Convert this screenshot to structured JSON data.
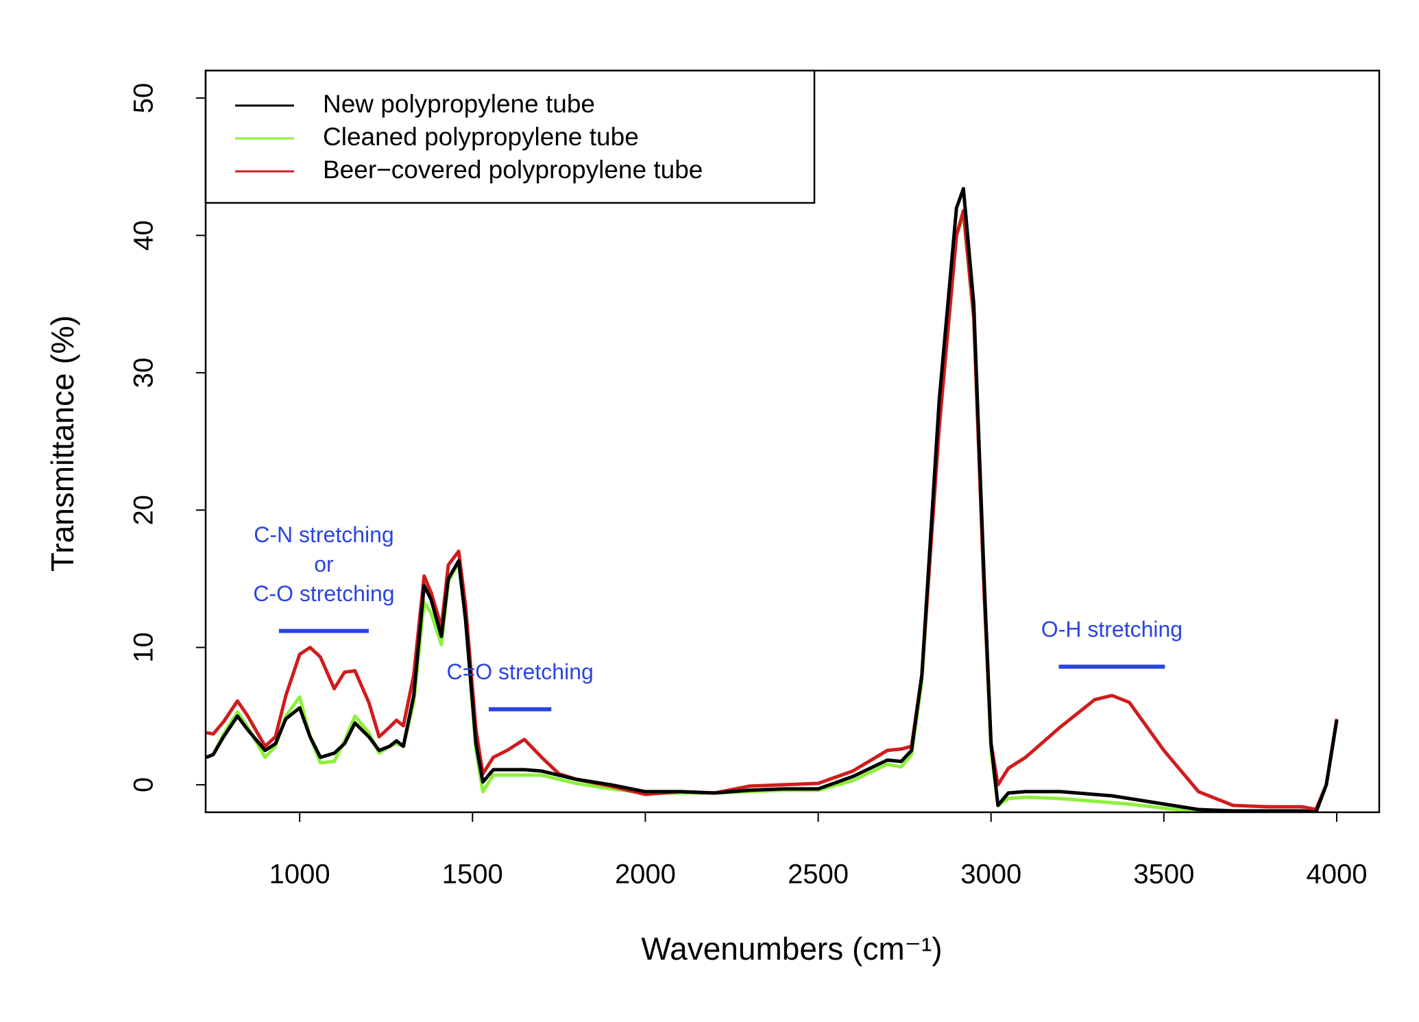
{
  "chart_data": {
    "type": "line",
    "xlabel": "Wavenumbers (cm⁻¹)",
    "ylabel": "Transmittance (%)",
    "x": [
      730,
      750,
      780,
      820,
      850,
      900,
      930,
      960,
      1000,
      1030,
      1060,
      1100,
      1130,
      1160,
      1200,
      1230,
      1260,
      1280,
      1300,
      1330,
      1360,
      1380,
      1410,
      1430,
      1460,
      1480,
      1510,
      1530,
      1560,
      1600,
      1650,
      1700,
      1750,
      1800,
      1900,
      2000,
      2100,
      2200,
      2300,
      2400,
      2500,
      2600,
      2700,
      2740,
      2770,
      2800,
      2850,
      2900,
      2920,
      2950,
      2980,
      3000,
      3020,
      3050,
      3100,
      3200,
      3300,
      3350,
      3400,
      3500,
      3600,
      3700,
      3800,
      3900,
      3940,
      3970,
      4000
    ],
    "series": [
      {
        "name": "New polypropylene tube",
        "color": "#000000",
        "values": [
          2.0,
          2.2,
          3.5,
          5.0,
          4.0,
          2.5,
          3.0,
          4.8,
          5.6,
          3.5,
          2.0,
          2.3,
          3.0,
          4.5,
          3.5,
          2.5,
          2.8,
          3.2,
          2.8,
          6.5,
          14.5,
          13.5,
          10.8,
          15.0,
          16.3,
          12,
          3,
          0.2,
          1.1,
          1.1,
          1.1,
          1.0,
          0.7,
          0.4,
          0,
          -0.5,
          -0.5,
          -0.6,
          -0.4,
          -0.3,
          -0.3,
          0.6,
          1.8,
          1.7,
          2.5,
          8,
          28,
          42,
          43.4,
          35,
          15,
          3,
          -1.5,
          -0.6,
          -0.5,
          -0.5,
          -0.7,
          -0.8,
          -1.0,
          -1.4,
          -1.8,
          -1.9,
          -1.9,
          -1.9,
          -2.0,
          0,
          4.7
        ]
      },
      {
        "name": "Cleaned polypropylene tube",
        "color": "#8cf03c",
        "values": [
          2.0,
          2.2,
          3.7,
          5.3,
          4.2,
          2.0,
          2.8,
          5.0,
          6.4,
          3.5,
          1.6,
          1.7,
          3.2,
          5.0,
          3.8,
          2.3,
          2.8,
          3.0,
          2.8,
          6,
          13.3,
          12.5,
          10.2,
          14.8,
          16.2,
          12,
          2.5,
          -0.5,
          0.7,
          0.7,
          0.7,
          0.7,
          0.4,
          0.1,
          -0.3,
          -0.6,
          -0.6,
          -0.6,
          -0.5,
          -0.4,
          -0.4,
          0.3,
          1.5,
          1.3,
          2.2,
          7.5,
          27,
          40,
          41.5,
          34,
          14,
          2.5,
          -1.5,
          -1.0,
          -0.9,
          -1.0,
          -1.2,
          -1.3,
          -1.4,
          -1.7,
          -2.0,
          -2.0,
          -2.0,
          -2.0,
          -2.0,
          0,
          4.7
        ]
      },
      {
        "name": "Beer−covered polypropylene tube",
        "color": "#d01c1c",
        "values": [
          3.8,
          3.7,
          4.6,
          6.1,
          5.0,
          2.8,
          3.5,
          6.5,
          9.5,
          10.0,
          9.3,
          7.0,
          8.2,
          8.3,
          6.0,
          3.5,
          4.2,
          4.7,
          4.3,
          8,
          15.2,
          14.0,
          11.5,
          16,
          17.0,
          13,
          4,
          0.8,
          2.0,
          2.5,
          3.3,
          2.0,
          0.8,
          0.4,
          -0.1,
          -0.7,
          -0.5,
          -0.6,
          -0.1,
          0,
          0.1,
          1.0,
          2.5,
          2.6,
          2.8,
          8,
          26,
          40,
          41.8,
          34,
          14,
          3,
          0,
          1.2,
          2.0,
          4.2,
          6.2,
          6.5,
          6.0,
          2.5,
          -0.5,
          -1.5,
          -1.6,
          -1.6,
          -1.8,
          0,
          4.8
        ]
      }
    ],
    "annotations": [
      {
        "text": [
          "C-N stretching",
          "or",
          "C-O stretching"
        ],
        "x": [
          940,
          1200
        ],
        "y": 11.2,
        "color": "#2a44e0"
      },
      {
        "text": [
          "C=O stretching"
        ],
        "x": [
          1547,
          1728
        ],
        "y": 5.5,
        "color": "#2a44e0"
      },
      {
        "text": [
          "O-H stretching"
        ],
        "x": [
          3196,
          3503
        ],
        "y": 8.6,
        "color": "#2a44e0"
      }
    ],
    "xlim": [
      728,
      4123
    ],
    "ylim": [
      -2,
      52
    ],
    "xticks": [
      1000,
      1500,
      2000,
      2500,
      3000,
      3500,
      4000
    ],
    "yticks": [
      0,
      10,
      20,
      30,
      40,
      50
    ],
    "legend": "top-left"
  }
}
